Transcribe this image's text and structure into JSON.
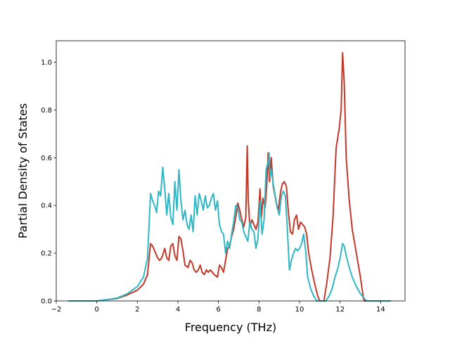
{
  "chart_data": {
    "type": "line",
    "title": "",
    "xlabel": "Frequency (THz)",
    "ylabel": "Partial Density of States",
    "xlim": [
      -2.0,
      15.2
    ],
    "ylim": [
      0.0,
      1.09
    ],
    "xticks": [
      -2,
      0,
      2,
      4,
      6,
      8,
      10,
      12,
      14
    ],
    "xtick_labels": [
      "−2",
      "0",
      "2",
      "4",
      "6",
      "8",
      "10",
      "12",
      "14"
    ],
    "yticks": [
      0.0,
      0.2,
      0.4,
      0.6,
      0.8,
      1.0
    ],
    "ytick_labels": [
      "0.0",
      "0.2",
      "0.4",
      "0.6",
      "0.8",
      "1.0"
    ],
    "grid": false,
    "legend": "none",
    "series": [
      {
        "color": "#c0392b",
        "points": [
          [
            -1.4,
            0.0
          ],
          [
            0.0,
            0.0
          ],
          [
            0.5,
            0.005
          ],
          [
            1.0,
            0.01
          ],
          [
            1.5,
            0.025
          ],
          [
            2.0,
            0.045
          ],
          [
            2.3,
            0.07
          ],
          [
            2.5,
            0.11
          ],
          [
            2.65,
            0.24
          ],
          [
            2.75,
            0.23
          ],
          [
            2.9,
            0.2
          ],
          [
            3.0,
            0.18
          ],
          [
            3.1,
            0.17
          ],
          [
            3.2,
            0.18
          ],
          [
            3.35,
            0.22
          ],
          [
            3.45,
            0.18
          ],
          [
            3.55,
            0.17
          ],
          [
            3.65,
            0.23
          ],
          [
            3.75,
            0.24
          ],
          [
            3.85,
            0.19
          ],
          [
            3.95,
            0.17
          ],
          [
            4.05,
            0.27
          ],
          [
            4.15,
            0.26
          ],
          [
            4.25,
            0.21
          ],
          [
            4.35,
            0.15
          ],
          [
            4.5,
            0.14
          ],
          [
            4.6,
            0.17
          ],
          [
            4.7,
            0.16
          ],
          [
            4.8,
            0.13
          ],
          [
            4.9,
            0.12
          ],
          [
            5.0,
            0.13
          ],
          [
            5.1,
            0.15
          ],
          [
            5.2,
            0.12
          ],
          [
            5.3,
            0.11
          ],
          [
            5.4,
            0.13
          ],
          [
            5.5,
            0.12
          ],
          [
            5.6,
            0.13
          ],
          [
            5.7,
            0.12
          ],
          [
            5.8,
            0.11
          ],
          [
            5.95,
            0.1
          ],
          [
            6.05,
            0.15
          ],
          [
            6.15,
            0.14
          ],
          [
            6.25,
            0.12
          ],
          [
            6.35,
            0.17
          ],
          [
            6.45,
            0.22
          ],
          [
            6.55,
            0.23
          ],
          [
            6.65,
            0.27
          ],
          [
            6.75,
            0.3
          ],
          [
            6.85,
            0.35
          ],
          [
            6.95,
            0.41
          ],
          [
            7.05,
            0.38
          ],
          [
            7.15,
            0.34
          ],
          [
            7.25,
            0.31
          ],
          [
            7.35,
            0.35
          ],
          [
            7.42,
            0.65
          ],
          [
            7.47,
            0.42
          ],
          [
            7.55,
            0.31
          ],
          [
            7.65,
            0.34
          ],
          [
            7.75,
            0.32
          ],
          [
            7.85,
            0.3
          ],
          [
            7.95,
            0.33
          ],
          [
            8.05,
            0.47
          ],
          [
            8.12,
            0.35
          ],
          [
            8.2,
            0.43
          ],
          [
            8.3,
            0.39
          ],
          [
            8.38,
            0.48
          ],
          [
            8.45,
            0.62
          ],
          [
            8.52,
            0.5
          ],
          [
            8.6,
            0.6
          ],
          [
            8.7,
            0.48
          ],
          [
            8.85,
            0.41
          ],
          [
            8.95,
            0.38
          ],
          [
            9.05,
            0.45
          ],
          [
            9.15,
            0.49
          ],
          [
            9.25,
            0.5
          ],
          [
            9.35,
            0.48
          ],
          [
            9.45,
            0.37
          ],
          [
            9.55,
            0.29
          ],
          [
            9.65,
            0.28
          ],
          [
            9.75,
            0.34
          ],
          [
            9.85,
            0.36
          ],
          [
            9.95,
            0.3
          ],
          [
            10.05,
            0.33
          ],
          [
            10.15,
            0.32
          ],
          [
            10.25,
            0.31
          ],
          [
            10.35,
            0.28
          ],
          [
            10.45,
            0.2
          ],
          [
            10.6,
            0.13
          ],
          [
            10.75,
            0.07
          ],
          [
            10.9,
            0.02
          ],
          [
            11.0,
            0.0
          ],
          [
            11.1,
            0.0
          ],
          [
            11.2,
            0.0
          ],
          [
            11.35,
            0.08
          ],
          [
            11.5,
            0.18
          ],
          [
            11.65,
            0.35
          ],
          [
            11.8,
            0.64
          ],
          [
            11.95,
            0.72
          ],
          [
            12.05,
            0.8
          ],
          [
            12.12,
            1.04
          ],
          [
            12.2,
            0.92
          ],
          [
            12.3,
            0.6
          ],
          [
            12.45,
            0.42
          ],
          [
            12.6,
            0.3
          ],
          [
            12.8,
            0.2
          ],
          [
            13.0,
            0.1
          ],
          [
            13.15,
            0.01
          ],
          [
            13.2,
            0.0
          ],
          [
            14.5,
            0.0
          ]
        ]
      },
      {
        "color": "#2fb8c4",
        "points": [
          [
            -1.4,
            0.0
          ],
          [
            0.0,
            0.0
          ],
          [
            0.5,
            0.005
          ],
          [
            1.0,
            0.012
          ],
          [
            1.5,
            0.03
          ],
          [
            2.0,
            0.06
          ],
          [
            2.3,
            0.1
          ],
          [
            2.5,
            0.18
          ],
          [
            2.65,
            0.45
          ],
          [
            2.75,
            0.42
          ],
          [
            2.85,
            0.4
          ],
          [
            2.95,
            0.37
          ],
          [
            3.05,
            0.46
          ],
          [
            3.15,
            0.44
          ],
          [
            3.25,
            0.56
          ],
          [
            3.35,
            0.47
          ],
          [
            3.45,
            0.36
          ],
          [
            3.55,
            0.45
          ],
          [
            3.65,
            0.35
          ],
          [
            3.75,
            0.32
          ],
          [
            3.85,
            0.5
          ],
          [
            3.95,
            0.38
          ],
          [
            4.05,
            0.55
          ],
          [
            4.15,
            0.42
          ],
          [
            4.25,
            0.34
          ],
          [
            4.35,
            0.38
          ],
          [
            4.45,
            0.32
          ],
          [
            4.55,
            0.3
          ],
          [
            4.65,
            0.36
          ],
          [
            4.75,
            0.29
          ],
          [
            4.85,
            0.44
          ],
          [
            4.95,
            0.36
          ],
          [
            5.05,
            0.45
          ],
          [
            5.15,
            0.42
          ],
          [
            5.25,
            0.38
          ],
          [
            5.35,
            0.44
          ],
          [
            5.45,
            0.39
          ],
          [
            5.55,
            0.4
          ],
          [
            5.65,
            0.43
          ],
          [
            5.75,
            0.45
          ],
          [
            5.85,
            0.38
          ],
          [
            5.95,
            0.42
          ],
          [
            6.05,
            0.32
          ],
          [
            6.15,
            0.29
          ],
          [
            6.25,
            0.28
          ],
          [
            6.35,
            0.2
          ],
          [
            6.45,
            0.25
          ],
          [
            6.55,
            0.22
          ],
          [
            6.65,
            0.28
          ],
          [
            6.75,
            0.33
          ],
          [
            6.85,
            0.4
          ],
          [
            6.95,
            0.39
          ],
          [
            7.05,
            0.34
          ],
          [
            7.15,
            0.33
          ],
          [
            7.25,
            0.29
          ],
          [
            7.35,
            0.27
          ],
          [
            7.45,
            0.25
          ],
          [
            7.55,
            0.33
          ],
          [
            7.65,
            0.3
          ],
          [
            7.75,
            0.29
          ],
          [
            7.85,
            0.22
          ],
          [
            7.95,
            0.26
          ],
          [
            8.05,
            0.42
          ],
          [
            8.15,
            0.28
          ],
          [
            8.25,
            0.34
          ],
          [
            8.35,
            0.55
          ],
          [
            8.45,
            0.58
          ],
          [
            8.5,
            0.62
          ],
          [
            8.55,
            0.52
          ],
          [
            8.6,
            0.55
          ],
          [
            8.7,
            0.49
          ],
          [
            8.8,
            0.44
          ],
          [
            8.9,
            0.39
          ],
          [
            9.0,
            0.36
          ],
          [
            9.1,
            0.44
          ],
          [
            9.2,
            0.46
          ],
          [
            9.3,
            0.44
          ],
          [
            9.4,
            0.3
          ],
          [
            9.5,
            0.13
          ],
          [
            9.6,
            0.17
          ],
          [
            9.7,
            0.2
          ],
          [
            9.8,
            0.22
          ],
          [
            9.9,
            0.21
          ],
          [
            10.0,
            0.22
          ],
          [
            10.1,
            0.24
          ],
          [
            10.2,
            0.28
          ],
          [
            10.3,
            0.21
          ],
          [
            10.4,
            0.1
          ],
          [
            10.55,
            0.05
          ],
          [
            10.7,
            0.02
          ],
          [
            10.85,
            0.0
          ],
          [
            11.3,
            0.0
          ],
          [
            11.45,
            0.02
          ],
          [
            11.6,
            0.05
          ],
          [
            11.75,
            0.1
          ],
          [
            11.9,
            0.14
          ],
          [
            12.0,
            0.18
          ],
          [
            12.12,
            0.24
          ],
          [
            12.2,
            0.23
          ],
          [
            12.3,
            0.19
          ],
          [
            12.45,
            0.14
          ],
          [
            12.6,
            0.1
          ],
          [
            12.8,
            0.06
          ],
          [
            13.0,
            0.03
          ],
          [
            13.2,
            0.01
          ],
          [
            13.3,
            0.0
          ],
          [
            14.5,
            0.0
          ]
        ]
      }
    ]
  }
}
